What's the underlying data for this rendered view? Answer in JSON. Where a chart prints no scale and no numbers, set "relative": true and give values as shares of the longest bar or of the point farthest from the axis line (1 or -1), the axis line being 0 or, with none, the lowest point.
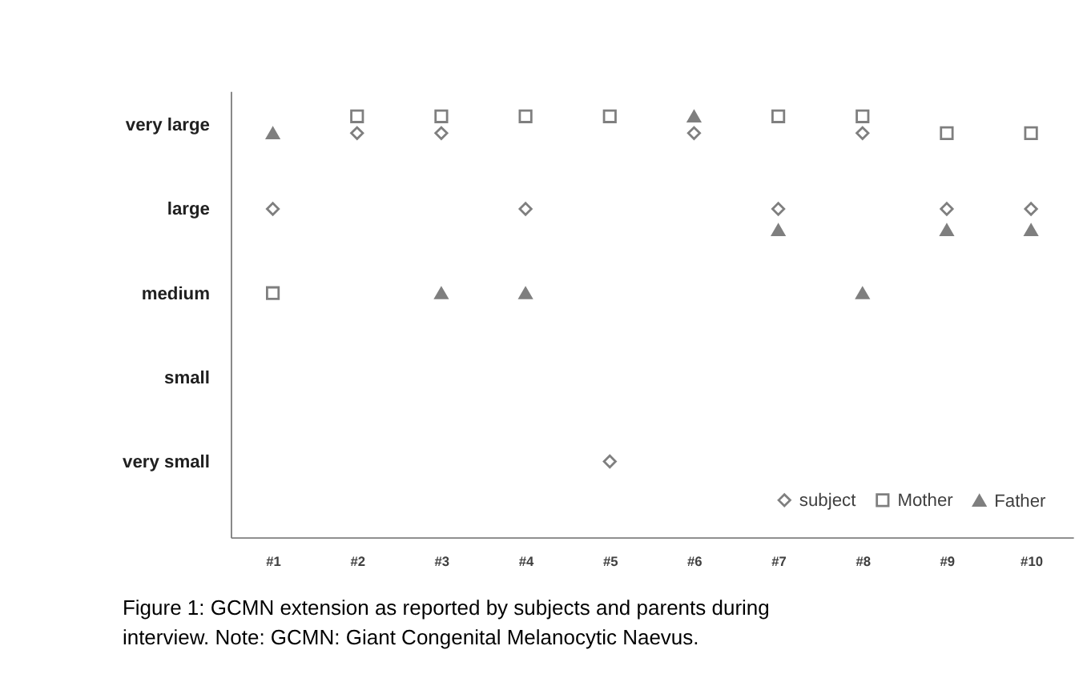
{
  "chart_data": {
    "type": "scatter",
    "title": "Figure 1: GCMN extension as reported by subjects and parents during interview. Note: GCMN: Giant Congenital Melanocytic Naevus.",
    "categories": [
      "#1",
      "#2",
      "#3",
      "#4",
      "#5",
      "#6",
      "#7",
      "#8",
      "#9",
      "#10"
    ],
    "series": [
      {
        "name": "subject",
        "color": "#7f7f7f",
        "marker": "diamond",
        "values": [
          0.78,
          0.96,
          0.96,
          0.78,
          0.18,
          0.96,
          0.78,
          0.96,
          0.78,
          0.78
        ]
      },
      {
        "name": "Mother",
        "color": "#7f7f7f",
        "marker": "square",
        "values": [
          0.58,
          1,
          1,
          1,
          1,
          null,
          1,
          1,
          0.96,
          0.96
        ]
      },
      {
        "name": "Father",
        "color": "#7f7f7f",
        "marker": "triangle",
        "values": [
          0.96,
          null,
          0.58,
          0.58,
          null,
          1,
          0.73,
          0.58,
          0.73,
          0.73
        ]
      }
    ],
    "relative": true,
    "annotations": [
      "very small",
      "small",
      "medium",
      "large",
      "very large"
    ],
    "grid": false,
    "legend": "bottom right"
  }
}
